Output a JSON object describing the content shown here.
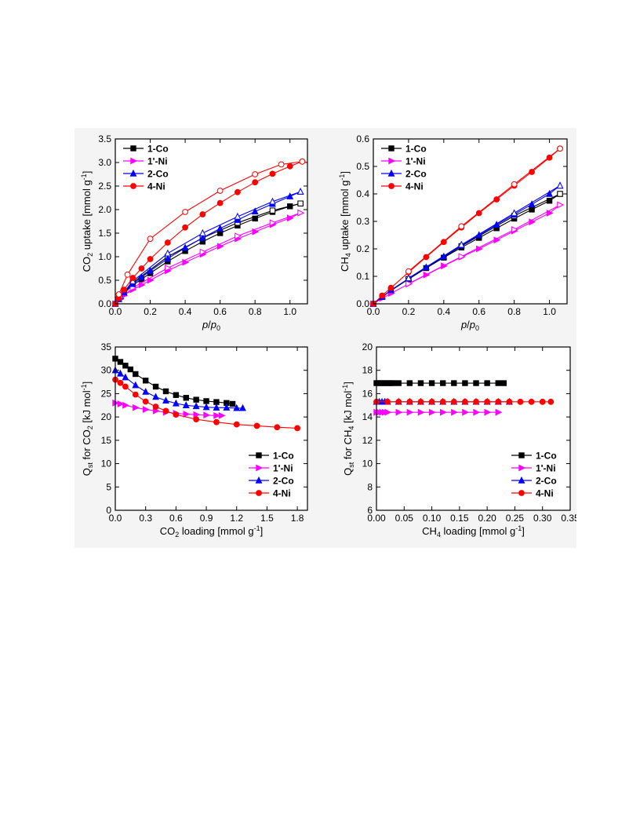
{
  "chart_data": [
    {
      "id": "co2_uptake",
      "type": "line",
      "xlabel_parts": [
        "p",
        "/",
        "p",
        "0"
      ],
      "ylabel_parts": [
        "CO",
        "2",
        " uptake [mmol g",
        "-1",
        "]"
      ],
      "xlim": [
        0,
        1.1
      ],
      "ylim": [
        0,
        3.5
      ],
      "xticks": [
        0.0,
        0.2,
        0.4,
        0.6,
        0.8,
        1.0
      ],
      "xtick_labels": [
        "0.0",
        "0.2",
        "0.4",
        "0.6",
        "0.8",
        "1.0"
      ],
      "yticks": [
        0.0,
        0.5,
        1.0,
        1.5,
        2.0,
        2.5,
        3.0,
        3.5
      ],
      "ytick_labels": [
        "0.0",
        "0.5",
        "1.0",
        "1.5",
        "2.0",
        "2.5",
        "3.0",
        "3.5"
      ],
      "legend_position": "top-left",
      "series": [
        {
          "name": "1-Co",
          "color": "#000000",
          "marker": "square",
          "adsorption": {
            "x": [
              0,
              0.02,
              0.05,
              0.1,
              0.15,
              0.2,
              0.3,
              0.4,
              0.5,
              0.6,
              0.7,
              0.8,
              0.9,
              1.0,
              1.06
            ],
            "y": [
              0,
              0.1,
              0.22,
              0.4,
              0.52,
              0.65,
              0.9,
              1.12,
              1.32,
              1.5,
              1.66,
              1.81,
              1.95,
              2.07,
              2.13
            ]
          },
          "desorption": {
            "x": [
              1.06,
              0.9,
              0.7,
              0.5,
              0.3,
              0.1,
              0.03
            ],
            "y": [
              2.13,
              1.98,
              1.72,
              1.4,
              1.0,
              0.45,
              0.15
            ]
          }
        },
        {
          "name": "1'-Ni",
          "color": "#ff00ff",
          "marker": "triangle-right",
          "adsorption": {
            "x": [
              0,
              0.02,
              0.05,
              0.1,
              0.15,
              0.2,
              0.3,
              0.4,
              0.5,
              0.6,
              0.7,
              0.8,
              0.9,
              1.0,
              1.06
            ],
            "y": [
              0,
              0.08,
              0.18,
              0.3,
              0.4,
              0.5,
              0.7,
              0.88,
              1.05,
              1.22,
              1.38,
              1.53,
              1.68,
              1.82,
              1.93
            ]
          },
          "desorption": {
            "x": [
              1.06,
              0.9,
              0.7,
              0.5,
              0.3,
              0.1,
              0.03
            ],
            "y": [
              1.93,
              1.72,
              1.44,
              1.1,
              0.76,
              0.34,
              0.11
            ]
          }
        },
        {
          "name": "2-Co",
          "color": "#0000ff",
          "marker": "triangle-up",
          "adsorption": {
            "x": [
              0,
              0.02,
              0.05,
              0.1,
              0.15,
              0.2,
              0.3,
              0.4,
              0.5,
              0.6,
              0.7,
              0.8,
              0.9,
              1.0,
              1.06
            ],
            "y": [
              0,
              0.1,
              0.24,
              0.42,
              0.56,
              0.7,
              0.96,
              1.19,
              1.4,
              1.6,
              1.78,
              1.96,
              2.12,
              2.28,
              2.38
            ]
          },
          "desorption": {
            "x": [
              1.06,
              0.9,
              0.7,
              0.5,
              0.3,
              0.1,
              0.03
            ],
            "y": [
              2.38,
              2.17,
              1.85,
              1.5,
              1.07,
              0.48,
              0.16
            ]
          }
        },
        {
          "name": "4-Ni",
          "color": "#ff0000",
          "marker": "circle",
          "adsorption": {
            "x": [
              0,
              0.02,
              0.05,
              0.1,
              0.15,
              0.2,
              0.3,
              0.4,
              0.5,
              0.6,
              0.7,
              0.8,
              0.9,
              1.0,
              1.07
            ],
            "y": [
              0,
              0.12,
              0.3,
              0.55,
              0.75,
              0.95,
              1.3,
              1.62,
              1.9,
              2.14,
              2.37,
              2.58,
              2.76,
              2.92,
              3.02
            ]
          },
          "desorption": {
            "x": [
              1.07,
              0.95,
              0.8,
              0.6,
              0.4,
              0.2,
              0.07,
              0.02
            ],
            "y": [
              3.02,
              2.96,
              2.75,
              2.4,
              1.95,
              1.38,
              0.62,
              0.2
            ]
          }
        }
      ]
    },
    {
      "id": "ch4_uptake",
      "type": "line",
      "xlabel_parts": [
        "p",
        "/",
        "p",
        "0"
      ],
      "ylabel_parts": [
        "CH",
        "4",
        " uptake [mmol g",
        "-1",
        "]"
      ],
      "xlim": [
        0,
        1.1
      ],
      "ylim": [
        0,
        0.6
      ],
      "xticks": [
        0.0,
        0.2,
        0.4,
        0.6,
        0.8,
        1.0
      ],
      "xtick_labels": [
        "0.0",
        "0.2",
        "0.4",
        "0.6",
        "0.8",
        "1.0"
      ],
      "yticks": [
        0.0,
        0.1,
        0.2,
        0.3,
        0.4,
        0.5,
        0.6
      ],
      "ytick_labels": [
        "0.0",
        "0.1",
        "0.2",
        "0.3",
        "0.4",
        "0.5",
        "0.6"
      ],
      "legend_position": "top-left",
      "series": [
        {
          "name": "1-Co",
          "color": "#000000",
          "marker": "square",
          "adsorption": {
            "x": [
              0,
              0.05,
              0.1,
              0.2,
              0.3,
              0.4,
              0.5,
              0.6,
              0.7,
              0.8,
              0.9,
              1.0,
              1.06
            ],
            "y": [
              0,
              0.025,
              0.048,
              0.09,
              0.13,
              0.168,
              0.205,
              0.24,
              0.275,
              0.31,
              0.343,
              0.375,
              0.4
            ]
          },
          "desorption": {
            "x": [
              1.06,
              0.8,
              0.5,
              0.2
            ],
            "y": [
              0.4,
              0.32,
              0.21,
              0.09
            ]
          }
        },
        {
          "name": "1'-Ni",
          "color": "#ff00ff",
          "marker": "triangle-right",
          "adsorption": {
            "x": [
              0,
              0.05,
              0.1,
              0.2,
              0.3,
              0.4,
              0.5,
              0.6,
              0.7,
              0.8,
              0.9,
              1.0,
              1.06
            ],
            "y": [
              0,
              0.02,
              0.038,
              0.072,
              0.105,
              0.138,
              0.17,
              0.2,
              0.232,
              0.265,
              0.298,
              0.33,
              0.36
            ]
          },
          "desorption": {
            "x": [
              1.06,
              0.8,
              0.5,
              0.2
            ],
            "y": [
              0.36,
              0.27,
              0.172,
              0.073
            ]
          }
        },
        {
          "name": "2-Co",
          "color": "#0000ff",
          "marker": "triangle-up",
          "adsorption": {
            "x": [
              0,
              0.05,
              0.1,
              0.2,
              0.3,
              0.4,
              0.5,
              0.6,
              0.7,
              0.8,
              0.9,
              1.0,
              1.06
            ],
            "y": [
              0,
              0.025,
              0.05,
              0.092,
              0.133,
              0.172,
              0.212,
              0.25,
              0.288,
              0.325,
              0.362,
              0.4,
              0.43
            ]
          },
          "desorption": {
            "x": [
              1.06,
              0.8,
              0.5,
              0.2
            ],
            "y": [
              0.43,
              0.33,
              0.215,
              0.093
            ]
          }
        },
        {
          "name": "4-Ni",
          "color": "#ff0000",
          "marker": "circle",
          "adsorption": {
            "x": [
              0,
              0.05,
              0.1,
              0.2,
              0.3,
              0.4,
              0.5,
              0.6,
              0.7,
              0.8,
              0.9,
              1.0,
              1.06
            ],
            "y": [
              0,
              0.03,
              0.058,
              0.115,
              0.17,
              0.225,
              0.278,
              0.33,
              0.38,
              0.43,
              0.48,
              0.532,
              0.565
            ]
          },
          "desorption": {
            "x": [
              1.06,
              0.8,
              0.5,
              0.2
            ],
            "y": [
              0.565,
              0.435,
              0.282,
              0.118
            ]
          }
        }
      ]
    },
    {
      "id": "qst_co2",
      "type": "line",
      "xlabel_parts": [
        "CO",
        "2",
        " loading [mmol g",
        "-1",
        "]"
      ],
      "ylabel_parts": [
        "Q",
        "st",
        " for CO",
        "2",
        " [kJ mol",
        "-1",
        "]"
      ],
      "xlim": [
        0,
        1.9
      ],
      "ylim": [
        0,
        35
      ],
      "xticks": [
        0.0,
        0.3,
        0.6,
        0.9,
        1.2,
        1.5,
        1.8
      ],
      "xtick_labels": [
        "0.0",
        "0.3",
        "0.6",
        "0.9",
        "1.2",
        "1.5",
        "1.8"
      ],
      "yticks": [
        0,
        5,
        10,
        15,
        20,
        25,
        30,
        35
      ],
      "ytick_labels": [
        "0",
        "5",
        "10",
        "15",
        "20",
        "25",
        "30",
        "35"
      ],
      "legend_position": "bottom-right",
      "series": [
        {
          "name": "1-Co",
          "color": "#000000",
          "marker": "square",
          "x": [
            0.0,
            0.05,
            0.1,
            0.15,
            0.2,
            0.3,
            0.4,
            0.5,
            0.6,
            0.7,
            0.8,
            0.9,
            1.0,
            1.1,
            1.16
          ],
          "y": [
            32.5,
            31.8,
            31.0,
            30.2,
            29.2,
            27.8,
            26.5,
            25.5,
            24.7,
            24.1,
            23.7,
            23.4,
            23.2,
            23.0,
            22.8
          ]
        },
        {
          "name": "1'-Ni",
          "color": "#ff00ff",
          "marker": "triangle-right",
          "x": [
            0.0,
            0.05,
            0.1,
            0.2,
            0.3,
            0.4,
            0.5,
            0.6,
            0.7,
            0.8,
            0.9,
            1.0,
            1.05
          ],
          "y": [
            23.0,
            22.8,
            22.5,
            22.0,
            21.6,
            21.3,
            21.0,
            20.8,
            20.6,
            20.5,
            20.4,
            20.3,
            20.3
          ]
        },
        {
          "name": "2-Co",
          "color": "#0000ff",
          "marker": "triangle-up",
          "x": [
            0.0,
            0.05,
            0.1,
            0.2,
            0.3,
            0.4,
            0.5,
            0.6,
            0.7,
            0.8,
            0.9,
            1.0,
            1.1,
            1.2,
            1.26
          ],
          "y": [
            30.0,
            29.3,
            28.5,
            26.8,
            25.4,
            24.3,
            23.5,
            22.9,
            22.5,
            22.3,
            22.1,
            22.0,
            22.0,
            21.9,
            21.9
          ]
        },
        {
          "name": "4-Ni",
          "color": "#ff0000",
          "marker": "circle",
          "x": [
            0.0,
            0.05,
            0.1,
            0.2,
            0.3,
            0.4,
            0.5,
            0.6,
            0.8,
            1.0,
            1.2,
            1.4,
            1.6,
            1.8
          ],
          "y": [
            28.0,
            27.3,
            26.5,
            24.8,
            23.3,
            22.2,
            21.3,
            20.5,
            19.5,
            18.9,
            18.4,
            18.1,
            17.8,
            17.6
          ]
        }
      ]
    },
    {
      "id": "qst_ch4",
      "type": "line",
      "xlabel_parts": [
        "CH",
        "4",
        " loading [mmol g",
        "-1",
        "]"
      ],
      "ylabel_parts": [
        "Q",
        "st",
        " for CH",
        "4",
        " [kJ mol",
        "-1",
        "]"
      ],
      "xlim": [
        0,
        0.35
      ],
      "ylim": [
        6,
        20
      ],
      "xticks": [
        0.0,
        0.05,
        0.1,
        0.15,
        0.2,
        0.25,
        0.3,
        0.35
      ],
      "xtick_labels": [
        "0.00",
        "0.05",
        "0.10",
        "0.15",
        "0.20",
        "0.25",
        "0.30",
        "0.35"
      ],
      "yticks": [
        6,
        8,
        10,
        12,
        14,
        16,
        18,
        20
      ],
      "ytick_labels": [
        "6",
        "8",
        "10",
        "12",
        "14",
        "16",
        "18",
        "20"
      ],
      "legend_position": "bottom-right",
      "series": [
        {
          "name": "1-Co",
          "color": "#000000",
          "marker": "square",
          "x": [
            0.0,
            0.005,
            0.01,
            0.015,
            0.02,
            0.025,
            0.03,
            0.04,
            0.06,
            0.08,
            0.1,
            0.12,
            0.14,
            0.16,
            0.18,
            0.2,
            0.22,
            0.23
          ],
          "y": [
            16.9,
            16.9,
            16.9,
            16.9,
            16.9,
            16.9,
            16.9,
            16.9,
            16.9,
            16.9,
            16.9,
            16.9,
            16.9,
            16.9,
            16.9,
            16.9,
            16.9,
            16.9
          ]
        },
        {
          "name": "1'-Ni",
          "color": "#ff00ff",
          "marker": "triangle-right",
          "x": [
            0.0,
            0.005,
            0.01,
            0.015,
            0.02,
            0.04,
            0.06,
            0.08,
            0.1,
            0.12,
            0.14,
            0.16,
            0.18,
            0.2,
            0.22
          ],
          "y": [
            14.4,
            14.4,
            14.4,
            14.4,
            14.4,
            14.4,
            14.4,
            14.4,
            14.4,
            14.4,
            14.4,
            14.4,
            14.4,
            14.4,
            14.4
          ]
        },
        {
          "name": "2-Co",
          "color": "#0000ff",
          "marker": "triangle-up",
          "x": [
            0.0,
            0.005,
            0.01,
            0.015,
            0.02,
            0.04,
            0.06,
            0.08,
            0.1,
            0.12,
            0.14,
            0.16,
            0.18,
            0.2,
            0.22,
            0.24
          ],
          "y": [
            15.3,
            15.3,
            15.3,
            15.3,
            15.3,
            15.3,
            15.3,
            15.3,
            15.3,
            15.3,
            15.3,
            15.3,
            15.3,
            15.3,
            15.3,
            15.3
          ]
        },
        {
          "name": "4-Ni",
          "color": "#ff0000",
          "marker": "circle",
          "x": [
            0.0,
            0.02,
            0.04,
            0.06,
            0.08,
            0.1,
            0.12,
            0.14,
            0.16,
            0.18,
            0.2,
            0.22,
            0.24,
            0.26,
            0.28,
            0.3,
            0.315
          ],
          "y": [
            15.3,
            15.3,
            15.3,
            15.3,
            15.3,
            15.3,
            15.3,
            15.3,
            15.3,
            15.3,
            15.3,
            15.3,
            15.3,
            15.3,
            15.3,
            15.3,
            15.3
          ]
        }
      ]
    }
  ]
}
